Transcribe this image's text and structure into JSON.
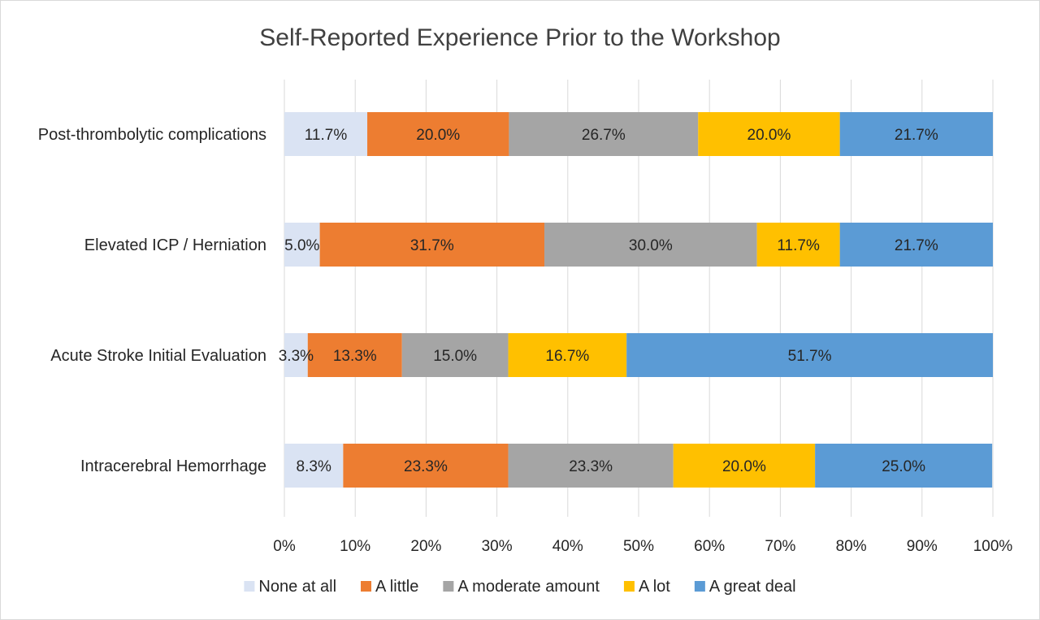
{
  "chart_data": {
    "type": "bar",
    "orientation": "horizontal",
    "stacked": "percent",
    "title": "Self-Reported Experience Prior to the Workshop",
    "categories": [
      "Post-thrombolytic complications",
      "Elevated ICP / Herniation",
      "Acute Stroke Initial Evaluation",
      "Intracerebral Hemorrhage"
    ],
    "series": [
      {
        "name": "None at all",
        "color": "#dae3f3",
        "values": [
          11.7,
          5.0,
          3.3,
          8.3
        ],
        "labels": [
          "11.7%",
          "5.0%",
          "3.3%",
          "8.3%"
        ]
      },
      {
        "name": "A little",
        "color": "#ed7d31",
        "values": [
          20.0,
          31.7,
          13.3,
          23.3
        ],
        "labels": [
          "20.0%",
          "31.7%",
          "13.3%",
          "23.3%"
        ]
      },
      {
        "name": "A moderate amount",
        "color": "#a5a5a5",
        "values": [
          26.7,
          30.0,
          15.0,
          23.3
        ],
        "labels": [
          "26.7%",
          "30.0%",
          "15.0%",
          "23.3%"
        ]
      },
      {
        "name": "A lot",
        "color": "#ffc000",
        "values": [
          20.0,
          11.7,
          16.7,
          20.0
        ],
        "labels": [
          "20.0%",
          "11.7%",
          "16.7%",
          "20.0%"
        ]
      },
      {
        "name": "A great deal",
        "color": "#5b9bd5",
        "values": [
          21.7,
          21.7,
          51.7,
          25.0
        ],
        "labels": [
          "21.7%",
          "21.7%",
          "51.7%",
          "25.0%"
        ]
      }
    ],
    "x_ticks": [
      "0%",
      "10%",
      "20%",
      "30%",
      "40%",
      "50%",
      "60%",
      "70%",
      "80%",
      "90%",
      "100%"
    ],
    "xlim": [
      0,
      100
    ],
    "xlabel": "",
    "ylabel": "",
    "grid": "vertical",
    "legend": "bottom"
  }
}
